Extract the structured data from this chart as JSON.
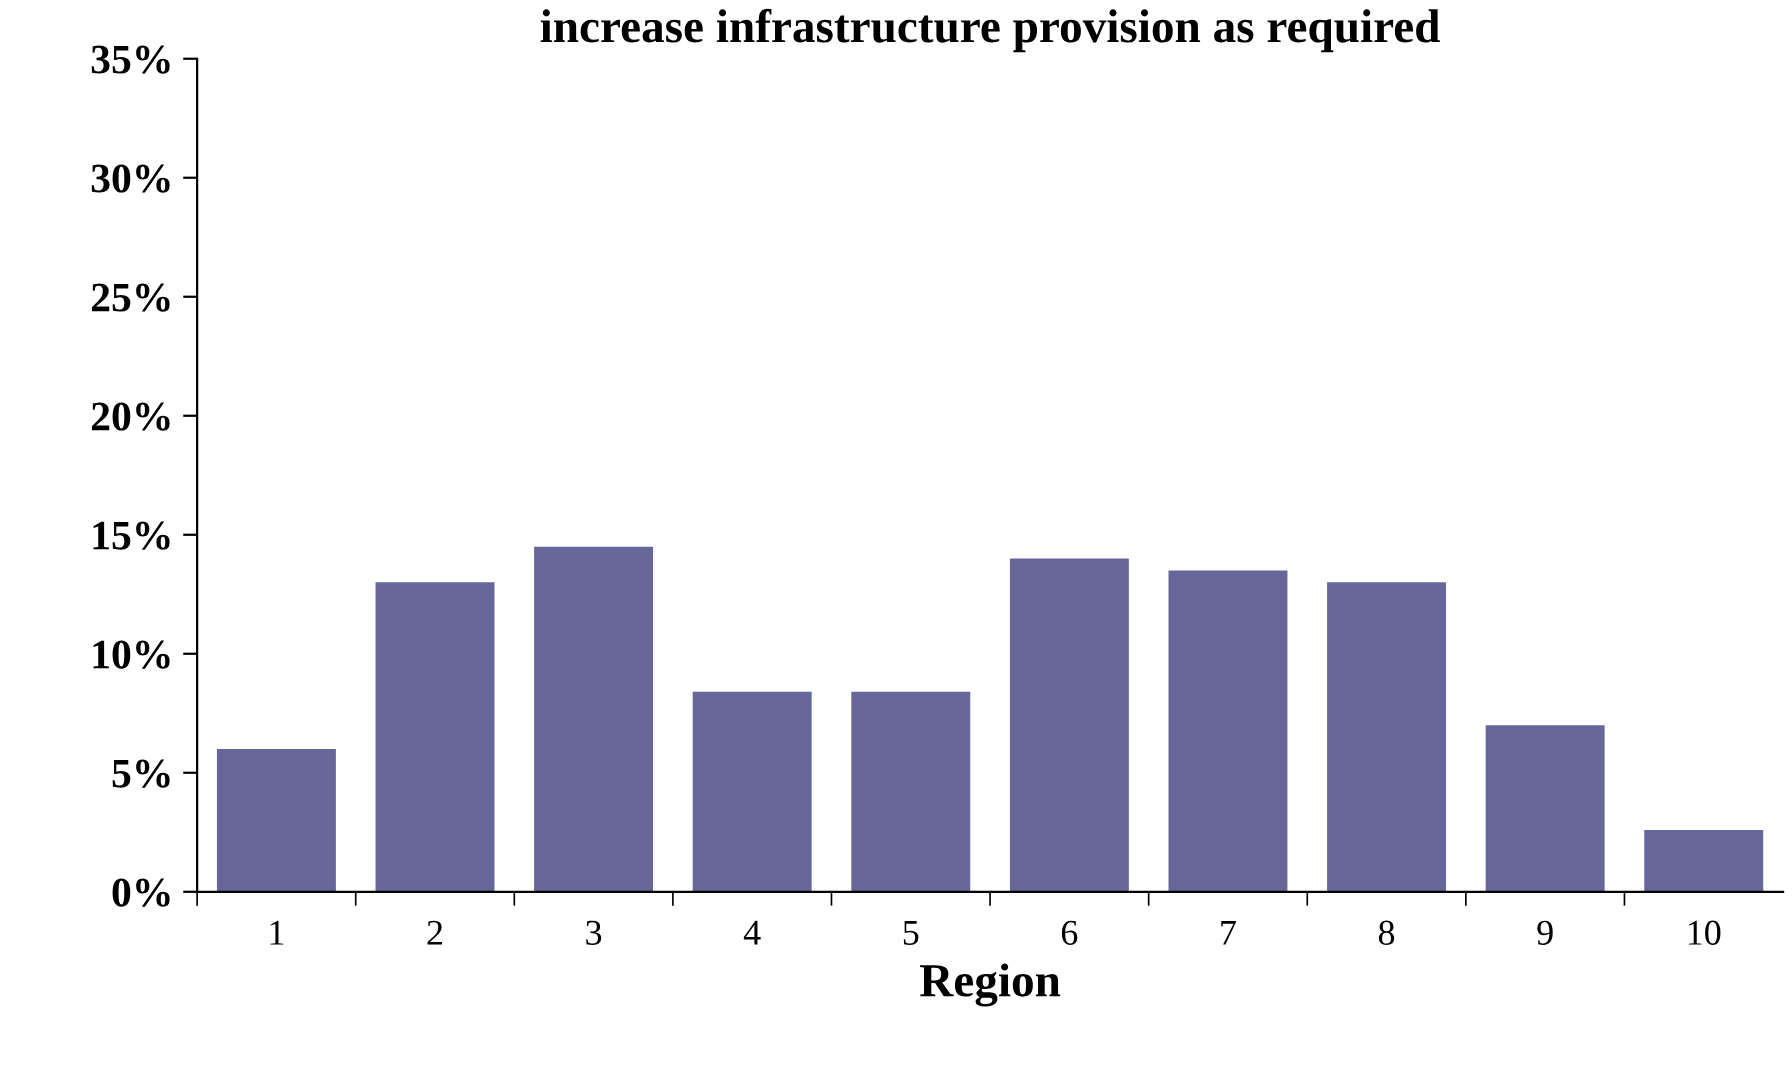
{
  "chart_data": {
    "type": "bar",
    "title": "increase infrastructure provision as required",
    "xlabel": "Region",
    "categories": [
      "1",
      "2",
      "3",
      "4",
      "5",
      "6",
      "7",
      "8",
      "9",
      "10"
    ],
    "values": [
      6,
      13,
      14.5,
      8.4,
      8.4,
      14,
      13.5,
      13,
      7,
      2.6
    ],
    "color": "#666699",
    "ylim": [
      0,
      35
    ],
    "yticks": [
      {
        "value": 0,
        "label": "0%"
      },
      {
        "value": 5,
        "label": "5%"
      },
      {
        "value": 10,
        "label": "10%"
      },
      {
        "value": 15,
        "label": "15%"
      },
      {
        "value": 20,
        "label": "20%"
      },
      {
        "value": 25,
        "label": "25%"
      },
      {
        "value": 30,
        "label": "30%"
      },
      {
        "value": 35,
        "label": "35%"
      }
    ],
    "grid": false
  }
}
